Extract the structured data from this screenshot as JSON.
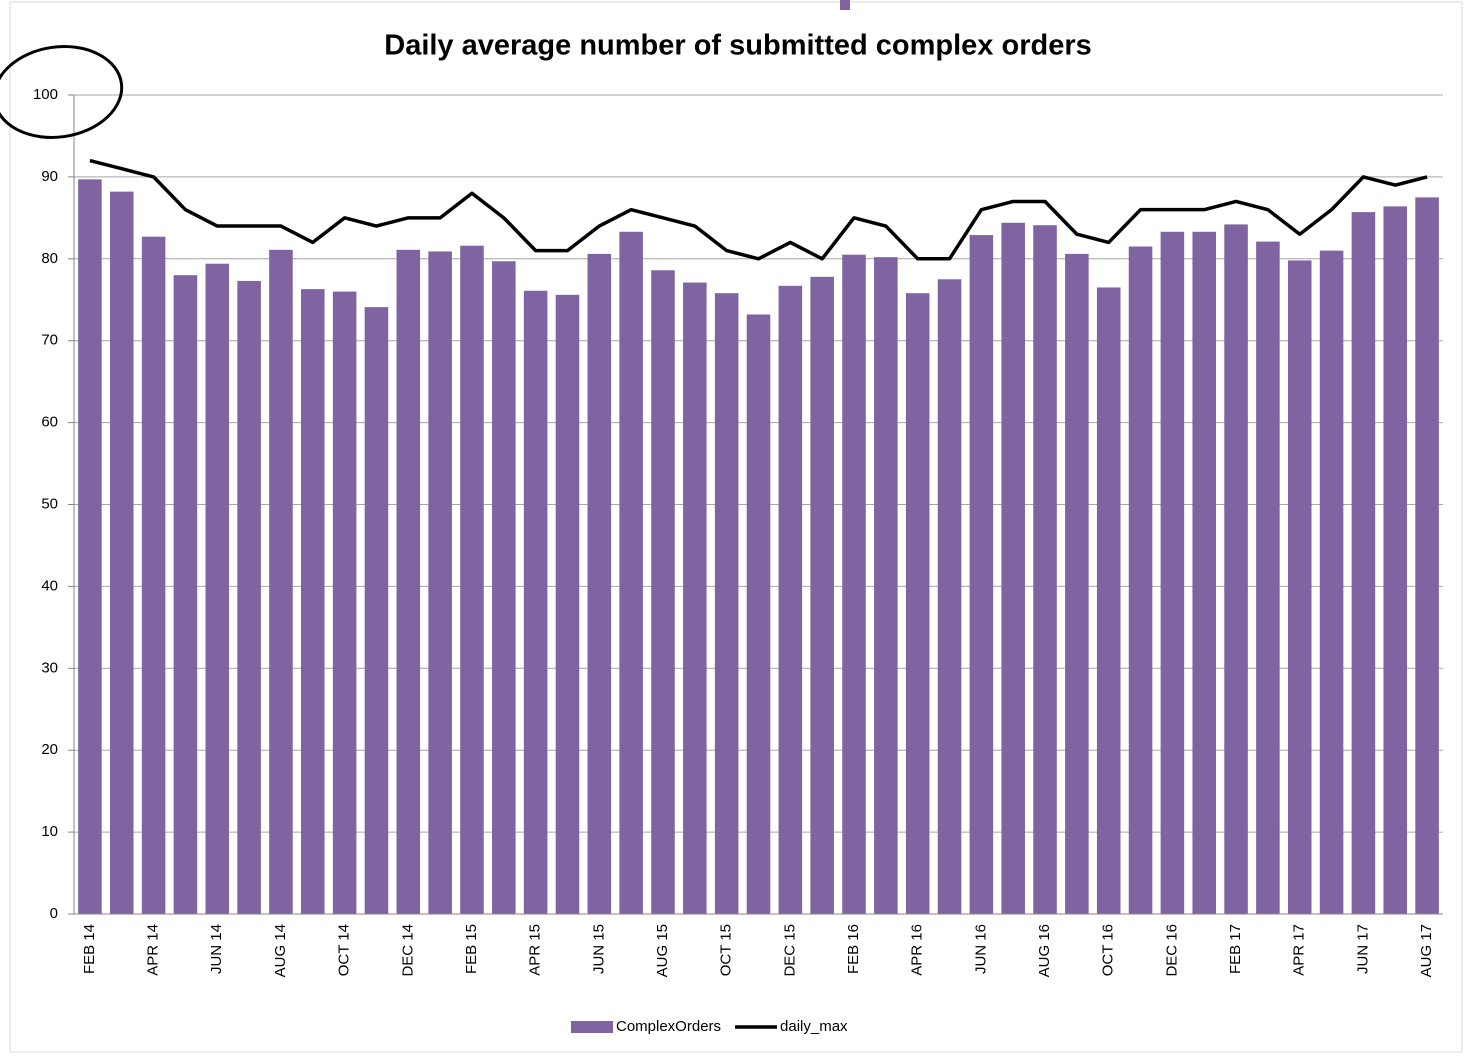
{
  "chart_data": {
    "type": "bar",
    "title": "Daily average number of submitted complex orders",
    "categories": [
      "FEB 14",
      null,
      "APR 14",
      null,
      "JUN 14",
      null,
      "AUG 14",
      null,
      "OCT 14",
      null,
      "DEC 14",
      null,
      "FEB 15",
      null,
      "APR 15",
      null,
      "JUN 15",
      null,
      "AUG 15",
      null,
      "OCT 15",
      null,
      "DEC 15",
      null,
      "FEB 16",
      null,
      "APR 16",
      null,
      "JUN 16",
      null,
      "AUG 16",
      null,
      "OCT 16",
      null,
      "DEC 16",
      null,
      "FEB 17",
      null,
      "APR 17",
      null,
      "JUN 17",
      null,
      "AUG 17"
    ],
    "series": [
      {
        "name": "ComplexOrders",
        "type": "bar",
        "color": "#8064a2",
        "values": [
          89.7,
          88.2,
          82.7,
          78.0,
          79.4,
          77.3,
          81.1,
          76.3,
          76.0,
          74.1,
          81.1,
          80.9,
          81.6,
          79.7,
          76.1,
          75.6,
          80.6,
          83.3,
          78.6,
          77.1,
          75.8,
          73.2,
          76.7,
          77.8,
          80.5,
          80.2,
          75.8,
          77.5,
          82.9,
          84.4,
          84.1,
          80.6,
          76.5,
          81.5,
          83.3,
          83.3,
          84.2,
          82.1,
          79.8,
          81.0,
          85.7,
          86.4,
          87.5
        ]
      },
      {
        "name": "daily_max",
        "type": "line",
        "color": "#000000",
        "values": [
          92,
          91,
          90,
          86,
          84,
          84,
          84,
          82,
          85,
          84,
          85,
          85,
          88,
          85,
          81,
          81,
          84,
          86,
          85,
          84,
          81,
          80,
          82,
          80,
          85,
          84,
          80,
          80,
          86,
          87,
          87,
          83,
          82,
          86,
          86,
          86,
          87,
          86,
          83,
          86,
          90,
          89,
          90
        ]
      }
    ],
    "ylim": [
      0,
      100
    ],
    "yticks": [
      0,
      10,
      20,
      30,
      40,
      50,
      60,
      70,
      80,
      90,
      100
    ],
    "grid": true,
    "legend": "bottom"
  }
}
